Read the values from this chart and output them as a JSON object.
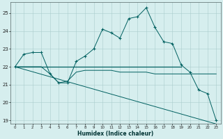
{
  "xlabel": "Humidex (Indice chaleur)",
  "xlim": [
    -0.5,
    23.5
  ],
  "ylim": [
    18.8,
    25.6
  ],
  "yticks": [
    19,
    20,
    21,
    22,
    23,
    24,
    25
  ],
  "xticks": [
    0,
    1,
    2,
    3,
    4,
    5,
    6,
    7,
    8,
    9,
    10,
    11,
    12,
    13,
    14,
    15,
    16,
    17,
    18,
    19,
    20,
    21,
    22,
    23
  ],
  "background_color": "#d6eeee",
  "grid_color": "#aacccc",
  "line_color": "#006060",
  "line1_x": [
    0,
    1,
    2,
    3,
    4,
    5,
    6,
    7,
    8,
    9,
    10,
    11,
    12,
    13,
    14,
    15,
    16,
    17,
    18,
    19,
    20,
    21,
    22,
    23
  ],
  "line1_y": [
    22.0,
    22.7,
    22.8,
    22.8,
    21.6,
    21.1,
    21.1,
    22.3,
    22.6,
    23.0,
    24.1,
    23.9,
    23.6,
    24.7,
    24.8,
    25.3,
    24.2,
    23.4,
    23.3,
    22.1,
    21.7,
    20.7,
    20.5,
    19.0
  ],
  "line2_x": [
    0,
    19
  ],
  "line2_y": [
    22.0,
    22.0
  ],
  "line3_x": [
    0,
    1,
    2,
    3,
    4,
    5,
    6,
    7,
    8,
    9,
    10,
    11,
    12,
    13,
    14,
    15,
    16,
    17,
    18,
    19,
    20,
    21,
    22,
    23
  ],
  "line3_y": [
    22.0,
    22.0,
    22.0,
    22.0,
    21.6,
    21.1,
    21.2,
    21.7,
    21.8,
    21.8,
    21.8,
    21.8,
    21.7,
    21.7,
    21.7,
    21.7,
    21.6,
    21.6,
    21.6,
    21.6,
    21.6,
    21.6,
    21.6,
    21.6
  ],
  "line4_x": [
    0,
    23
  ],
  "line4_y": [
    22.0,
    18.8
  ]
}
